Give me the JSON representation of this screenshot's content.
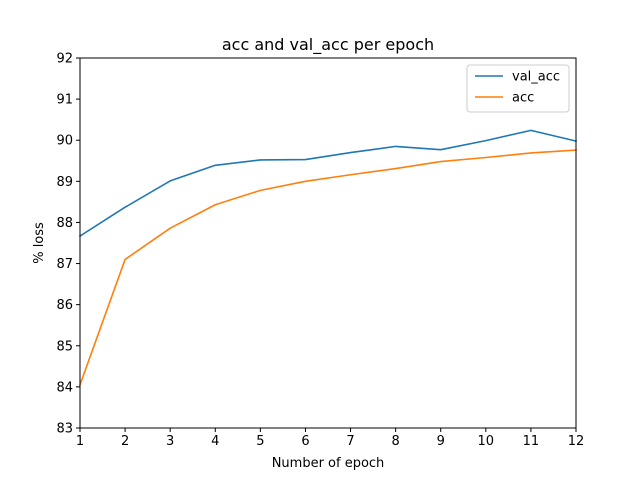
{
  "chart_data": {
    "type": "line",
    "title": "acc and val_acc per epoch",
    "xlabel": "Number of epoch",
    "ylabel": "% loss",
    "x": [
      1,
      2,
      3,
      4,
      5,
      6,
      7,
      8,
      9,
      10,
      11,
      12
    ],
    "xlim": [
      1,
      12
    ],
    "ylim": [
      83,
      92
    ],
    "xticks": [
      1,
      2,
      3,
      4,
      5,
      6,
      7,
      8,
      9,
      10,
      11,
      12
    ],
    "yticks": [
      83,
      84,
      85,
      86,
      87,
      88,
      89,
      90,
      91,
      92
    ],
    "grid": false,
    "legend_position": "top-right",
    "series": [
      {
        "name": "val_acc",
        "color": "#1f77b4",
        "values": [
          87.67,
          88.37,
          89.01,
          89.39,
          89.52,
          89.53,
          89.7,
          89.85,
          89.77,
          89.99,
          90.24,
          89.98
        ]
      },
      {
        "name": "acc",
        "color": "#ff7f0e",
        "values": [
          84.05,
          87.1,
          87.86,
          88.43,
          88.78,
          89.0,
          89.16,
          89.31,
          89.48,
          89.58,
          89.69,
          89.76
        ]
      }
    ]
  }
}
